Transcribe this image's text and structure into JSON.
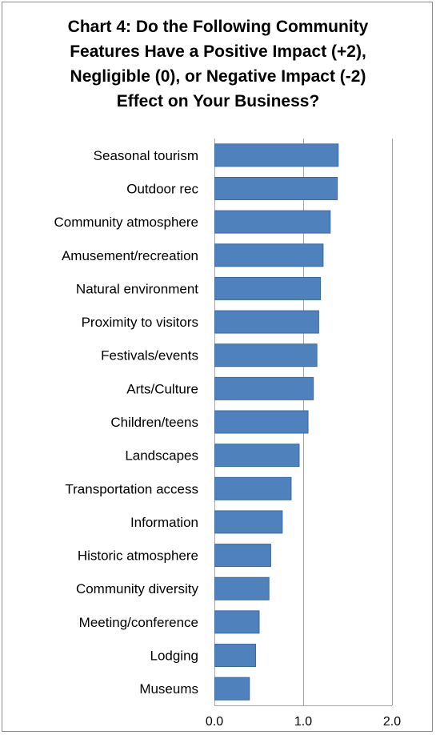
{
  "chart_data": {
    "type": "bar",
    "orientation": "horizontal",
    "title_lines": [
      "Chart 4:  Do the Following Community",
      "Features Have a Positive Impact (+2),",
      "Negligible (0), or Negative Impact (-2)",
      "Effect on Your Business?"
    ],
    "categories": [
      "Seasonal tourism",
      "Outdoor rec",
      "Community atmosphere",
      "Amusement/recreation",
      "Natural environment",
      "Proximity to visitors",
      "Festivals/events",
      "Arts/Culture",
      "Children/teens",
      "Landscapes",
      "Transportation access",
      "Information",
      "Historic atmosphere",
      "Community diversity",
      "Meeting/conference",
      "Lodging",
      "Museums"
    ],
    "values": [
      1.39,
      1.38,
      1.3,
      1.22,
      1.19,
      1.17,
      1.15,
      1.11,
      1.05,
      0.95,
      0.86,
      0.76,
      0.63,
      0.61,
      0.5,
      0.46,
      0.39
    ],
    "xlim": [
      0.0,
      2.0
    ],
    "ticks": [
      "0.0",
      "1.0",
      "2.0"
    ],
    "tick_values": [
      0.0,
      1.0,
      2.0
    ],
    "grid": true,
    "bar_color": "#4f81bd",
    "bar_edge_color": "#3a6aa3",
    "grid_color": "#a6a6a6"
  }
}
